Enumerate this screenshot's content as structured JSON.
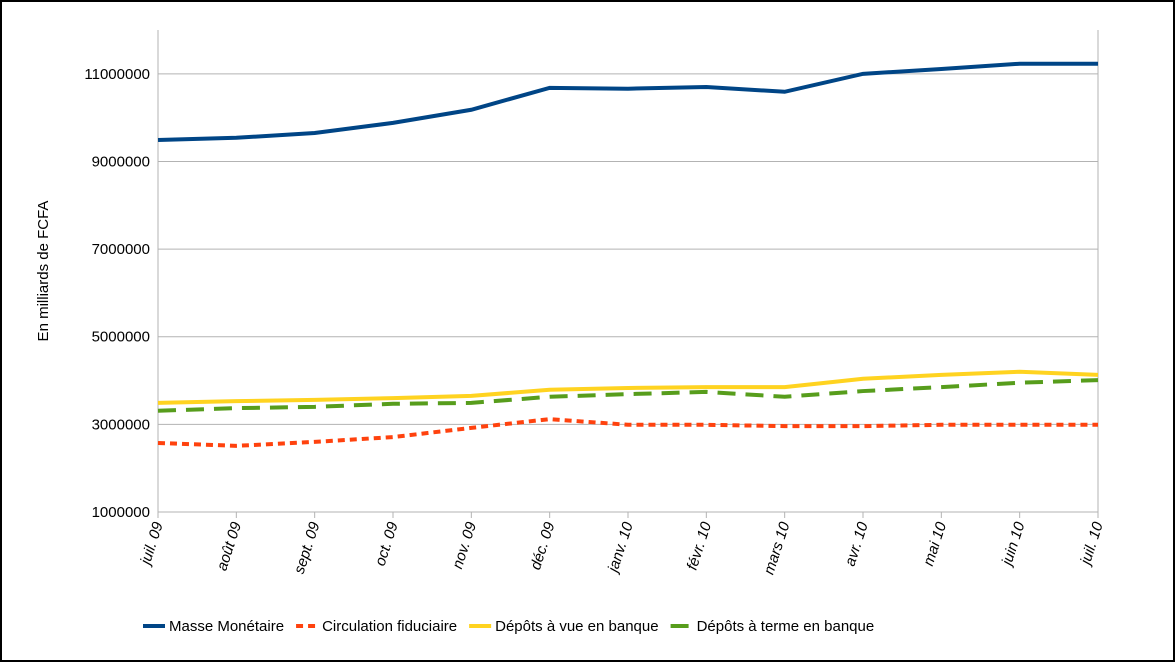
{
  "chart_data": {
    "type": "line",
    "y_label": "En milliards de FCFA",
    "categories": [
      "juil. 09",
      "août 09",
      "sept. 09",
      "oct. 09",
      "nov. 09",
      "déc. 09",
      "janv. 10",
      "févr. 10",
      "mars 10",
      "avr. 10",
      "mai 10",
      "juin 10",
      "juil. 10"
    ],
    "ylim": [
      1000000,
      12000000
    ],
    "yticks": [
      1000000,
      3000000,
      5000000,
      7000000,
      9000000,
      11000000
    ],
    "grid": true,
    "legend": "bottom",
    "series": [
      {
        "name": "Masse Monétaire",
        "color": "#004586",
        "dash": "solid",
        "values": [
          9490000,
          9540000,
          9650000,
          9880000,
          10180000,
          10680000,
          10660000,
          10700000,
          10590000,
          11000000,
          11110000,
          11230000,
          11230000
        ]
      },
      {
        "name": "Circulation fiduciaire",
        "color": "#ff420e",
        "dash": "dotted",
        "values": [
          2575000,
          2510000,
          2600000,
          2710000,
          2920000,
          3120000,
          2990000,
          2990000,
          2960000,
          2960000,
          2990000,
          2990000,
          2990000
        ]
      },
      {
        "name": "Dépôts à vue en banque",
        "color": "#ffd320",
        "dash": "solid",
        "values": [
          3490000,
          3530000,
          3560000,
          3600000,
          3650000,
          3790000,
          3830000,
          3850000,
          3850000,
          4040000,
          4130000,
          4200000,
          4130000
        ]
      },
      {
        "name": "Dépôts à terme en banque",
        "color": "#579d1c",
        "dash": "dashed",
        "values": [
          3310000,
          3370000,
          3400000,
          3470000,
          3490000,
          3630000,
          3690000,
          3740000,
          3630000,
          3760000,
          3850000,
          3950000,
          4010000
        ]
      }
    ]
  }
}
